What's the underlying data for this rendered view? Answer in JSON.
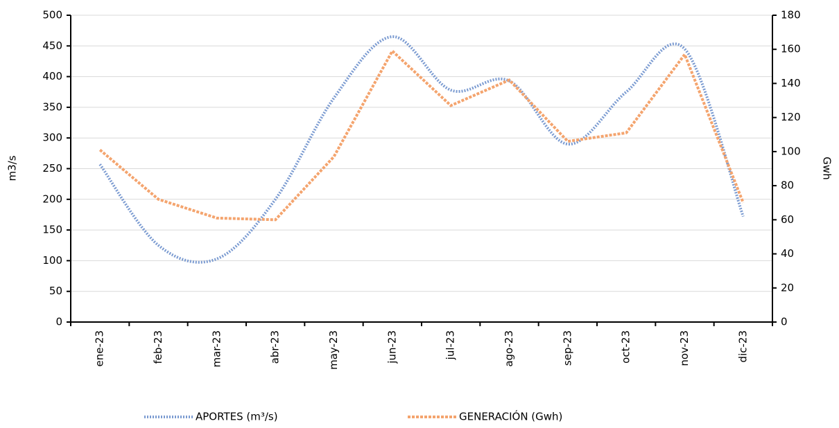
{
  "chart_data": {
    "type": "line",
    "categories": [
      "ene-23",
      "feb-23",
      "mar-23",
      "abr-23",
      "may-23",
      "jun-23",
      "jul-23",
      "ago-23",
      "sep-23",
      "oct-23",
      "nov-23",
      "dic-23"
    ],
    "series": [
      {
        "name": "APORTES (m³/s)",
        "color": "#7b9bd1",
        "smooth": true,
        "values": [
          257,
          125,
          103,
          200,
          365,
          465,
          378,
          393,
          290,
          375,
          445,
          172
        ]
      },
      {
        "name": "GENERACIÓN (Gwh)",
        "color": "#f4a46e",
        "axis": "y2",
        "smooth": false,
        "values": [
          101,
          72,
          61,
          60,
          97,
          159,
          127,
          142,
          106,
          111,
          157,
          70
        ]
      }
    ],
    "ylabel": "m3/s",
    "y2label": "Gwh",
    "ylim": [
      0,
      500
    ],
    "yticks": [
      0,
      50,
      100,
      150,
      200,
      250,
      300,
      350,
      400,
      450,
      500
    ],
    "y2lim": [
      0,
      180
    ],
    "y2ticks": [
      0,
      20,
      40,
      60,
      80,
      100,
      120,
      140,
      160,
      180
    ],
    "grid": true,
    "legend": "bottom"
  }
}
